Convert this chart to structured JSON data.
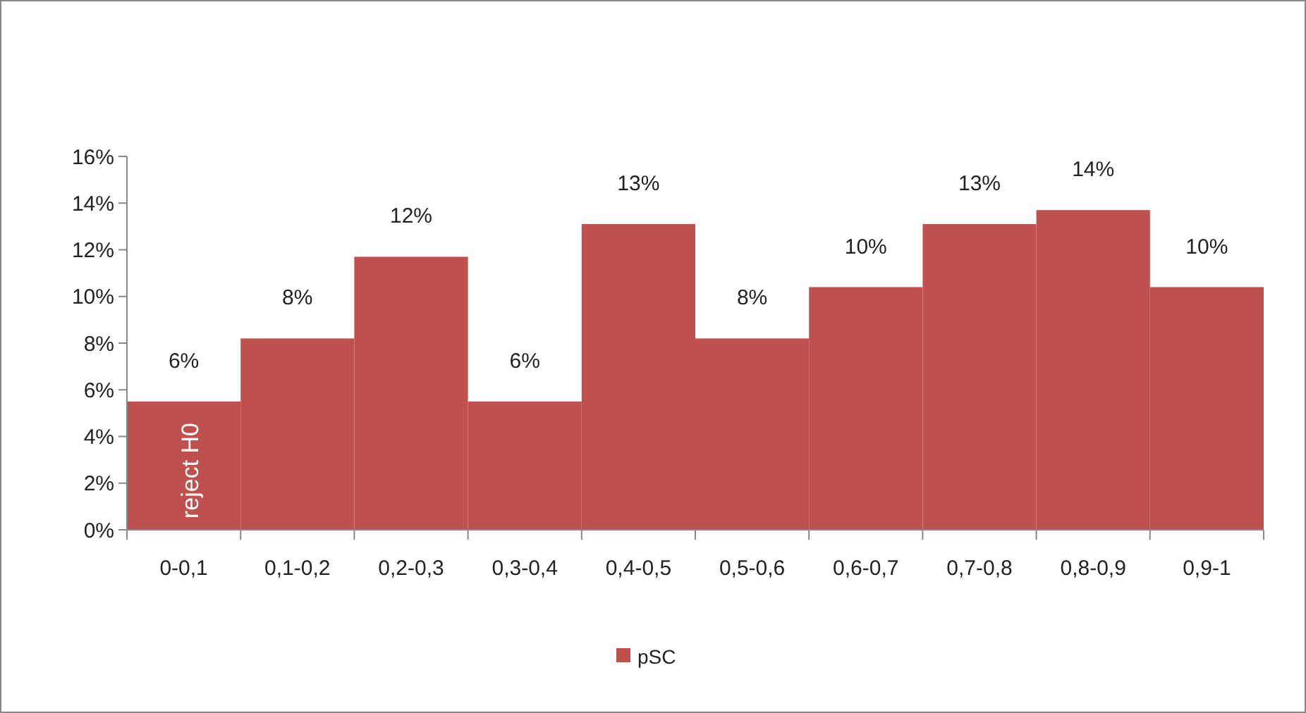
{
  "chart_data": {
    "type": "bar",
    "categories": [
      "0-0,1",
      "0,1-0,2",
      "0,2-0,3",
      "0,3-0,4",
      "0,4-0,5",
      "0,5-0,6",
      "0,6-0,7",
      "0,7-0,8",
      "0,8-0,9",
      "0,9-1"
    ],
    "series": [
      {
        "name": "pSC",
        "color": "#c0504d",
        "values": [
          5.5,
          8.2,
          11.7,
          5.5,
          13.1,
          8.2,
          10.4,
          13.1,
          13.7,
          10.4
        ],
        "value_labels": [
          "6%",
          "8%",
          "12%",
          "6%",
          "13%",
          "8%",
          "10%",
          "13%",
          "14%",
          "10%"
        ]
      }
    ],
    "ylim": [
      0,
      16
    ],
    "yticks": [
      {
        "value": 0,
        "label": "0%"
      },
      {
        "value": 2,
        "label": "2%"
      },
      {
        "value": 4,
        "label": "4%"
      },
      {
        "value": 6,
        "label": "6%"
      },
      {
        "value": 8,
        "label": "8%"
      },
      {
        "value": 10,
        "label": "10%"
      },
      {
        "value": 12,
        "label": "12%"
      },
      {
        "value": 14,
        "label": "14%"
      },
      {
        "value": 16,
        "label": "16%"
      }
    ],
    "annotations": [
      "reject H0"
    ],
    "grid": false,
    "legend": "bottom"
  }
}
